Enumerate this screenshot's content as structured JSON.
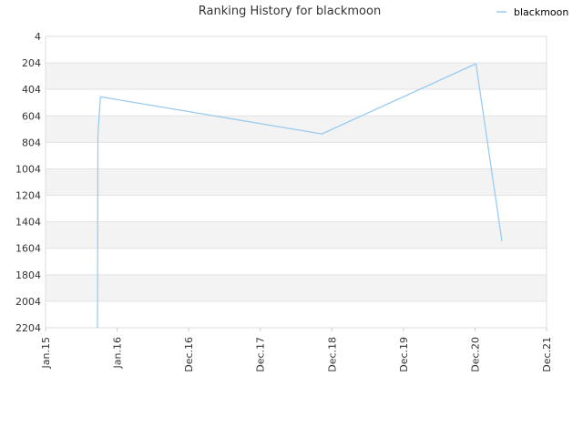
{
  "chart_data": {
    "type": "line",
    "title": "Ranking History for blackmoon",
    "xlabel": "",
    "ylabel": "",
    "y_inverted": true,
    "ylim": [
      4,
      2204
    ],
    "y_ticks": [
      4,
      204,
      404,
      604,
      804,
      1004,
      1204,
      1404,
      1604,
      1804,
      2004,
      2204
    ],
    "x_ticks": [
      "Jan.15",
      "Jan.16",
      "Dec.16",
      "Dec.17",
      "Dec.18",
      "Dec.19",
      "Dec.20",
      "Dec.21"
    ],
    "xlim": [
      "2015-01-01",
      "2021-12-01"
    ],
    "grid": "horizontal alternating bands",
    "legend_position": "top-right",
    "series": [
      {
        "name": "blackmoon",
        "color": "#99ccf2",
        "points": [
          {
            "x": "2015-09-20",
            "y": 2204
          },
          {
            "x": "2015-09-22",
            "y": 750
          },
          {
            "x": "2015-09-28",
            "y": 610
          },
          {
            "x": "2015-10-05",
            "y": 460
          },
          {
            "x": "2018-10-25",
            "y": 740
          },
          {
            "x": "2020-12-10",
            "y": 210
          },
          {
            "x": "2021-04-20",
            "y": 1550
          }
        ]
      }
    ]
  }
}
